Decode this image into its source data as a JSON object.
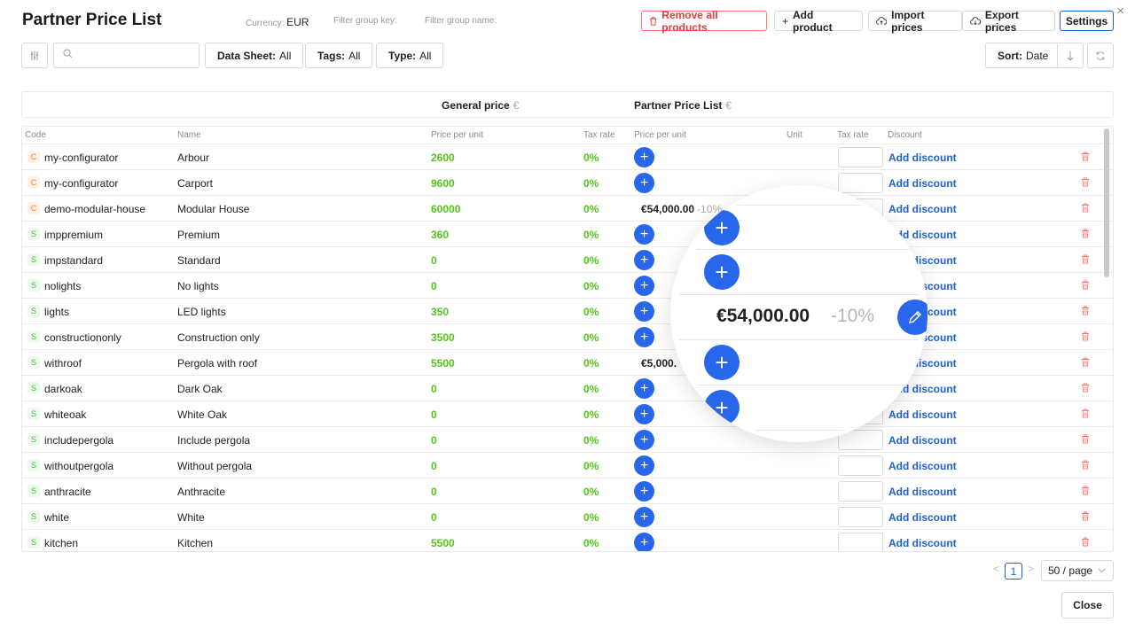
{
  "header": {
    "title": "Partner Price List",
    "currency_label": "Currency:",
    "currency_value": "EUR",
    "filter_group_key": "Filter group key:",
    "filter_group_name": "Filter group name:",
    "remove_all": "Remove all products",
    "add_product": "Add product",
    "import_prices": "Import prices",
    "export_prices": "Export prices",
    "settings": "Settings",
    "close_icon": "×"
  },
  "filters": {
    "search_placeholder": "",
    "data_sheet_label": "Data Sheet:",
    "data_sheet_value": "All",
    "tags_label": "Tags:",
    "tags_value": "All",
    "type_label": "Type:",
    "type_value": "All",
    "sort_label": "Sort:",
    "sort_value": "Date"
  },
  "groups": {
    "general": "General price",
    "general_currency": "€",
    "partner": "Partner Price List",
    "partner_currency": "€"
  },
  "columns": {
    "code": "Code",
    "name": "Name",
    "price": "Price per unit",
    "tax": "Tax rate",
    "partner_price": "Price per unit",
    "unit": "Unit",
    "partner_tax": "Tax rate",
    "discount": "Discount"
  },
  "rows": [
    {
      "type": "C",
      "code": "my-configurator",
      "name": "Arbour",
      "price": "2600",
      "tax": "0%",
      "partner_price": "",
      "partner_discount": "",
      "discount": "Add discount"
    },
    {
      "type": "C",
      "code": "my-configurator",
      "name": "Carport",
      "price": "9600",
      "tax": "0%",
      "partner_price": "",
      "partner_discount": "",
      "discount": "Add discount"
    },
    {
      "type": "C",
      "code": "demo-modular-house",
      "name": "Modular House",
      "price": "60000",
      "tax": "0%",
      "partner_price": "€54,000.00",
      "partner_discount": "-10%",
      "discount": "Add discount"
    },
    {
      "type": "S",
      "code": "imppremium",
      "name": "Premium",
      "price": "360",
      "tax": "0%",
      "partner_price": "",
      "partner_discount": "",
      "discount": "Add discount"
    },
    {
      "type": "S",
      "code": "impstandard",
      "name": "Standard",
      "price": "0",
      "tax": "0%",
      "partner_price": "",
      "partner_discount": "",
      "discount": "Add discount"
    },
    {
      "type": "S",
      "code": "nolights",
      "name": "No lights",
      "price": "0",
      "tax": "0%",
      "partner_price": "",
      "partner_discount": "",
      "discount": "Add discount"
    },
    {
      "type": "S",
      "code": "lights",
      "name": "LED lights",
      "price": "350",
      "tax": "0%",
      "partner_price": "",
      "partner_discount": "",
      "discount": "Add discount"
    },
    {
      "type": "S",
      "code": "constructiononly",
      "name": "Construction only",
      "price": "3500",
      "tax": "0%",
      "partner_price": "",
      "partner_discount": "",
      "discount": "Add discount"
    },
    {
      "type": "S",
      "code": "withroof",
      "name": "Pergola with roof",
      "price": "5500",
      "tax": "0%",
      "partner_price": "€5,000.",
      "partner_discount": "",
      "discount": "Add discount"
    },
    {
      "type": "S",
      "code": "darkoak",
      "name": "Dark Oak",
      "price": "0",
      "tax": "0%",
      "partner_price": "",
      "partner_discount": "",
      "discount": "Add discount"
    },
    {
      "type": "S",
      "code": "whiteoak",
      "name": "White Oak",
      "price": "0",
      "tax": "0%",
      "partner_price": "",
      "partner_discount": "",
      "discount": "Add discount"
    },
    {
      "type": "S",
      "code": "includepergola",
      "name": "Include pergola",
      "price": "0",
      "tax": "0%",
      "partner_price": "",
      "partner_discount": "",
      "discount": "Add discount"
    },
    {
      "type": "S",
      "code": "withoutpergola",
      "name": "Without pergola",
      "price": "0",
      "tax": "0%",
      "partner_price": "",
      "partner_discount": "",
      "discount": "Add discount"
    },
    {
      "type": "S",
      "code": "anthracite",
      "name": "Anthracite",
      "price": "0",
      "tax": "0%",
      "partner_price": "",
      "partner_discount": "",
      "discount": "Add discount"
    },
    {
      "type": "S",
      "code": "white",
      "name": "White",
      "price": "0",
      "tax": "0%",
      "partner_price": "",
      "partner_discount": "",
      "discount": "Add discount"
    },
    {
      "type": "S",
      "code": "kitchen",
      "name": "Kitchen",
      "price": "5500",
      "tax": "0%",
      "partner_price": "",
      "partner_discount": "",
      "discount": "Add discount"
    }
  ],
  "magnifier": {
    "price": "€54,000.00",
    "discount": "-10%"
  },
  "pagination": {
    "prev": "<",
    "current": "1",
    "next": ">",
    "page_size": "50 / page"
  },
  "footer": {
    "close": "Close"
  },
  "colors": {
    "accent": "#2866ec",
    "price_green": "#52c41a",
    "danger": "#e23b3b"
  }
}
